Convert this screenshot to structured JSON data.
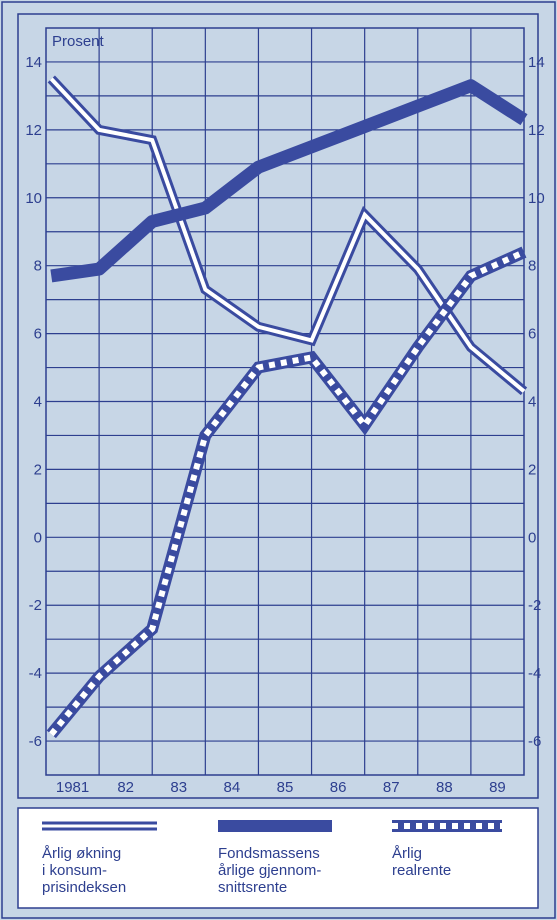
{
  "chart_data": {
    "type": "line",
    "ylabel": "Prosent",
    "ylim": [
      -7,
      15
    ],
    "yticks": [
      -6,
      -4,
      -2,
      0,
      2,
      4,
      6,
      8,
      10,
      12,
      14
    ],
    "xlabels": [
      "1981",
      "82",
      "83",
      "84",
      "85",
      "86",
      "87",
      "88",
      "89"
    ],
    "colors": {
      "background": "#c7d6e6",
      "grid": "#2d3f8f",
      "line": "#3a4ba0",
      "legend_bg": "#ffffff"
    },
    "series": [
      {
        "name": "Årlig økning i konsumprisindeksen",
        "legend_lines": [
          "Årlig økning",
          "i konsum-",
          "prisindeksen"
        ],
        "style": "double",
        "x": [
          1980.6,
          1981.5,
          1982.5,
          1983.5,
          1984.5,
          1985.5,
          1986.5,
          1987.5,
          1988.5,
          1989.5
        ],
        "values": [
          13.5,
          12.0,
          11.7,
          7.3,
          6.2,
          5.8,
          9.5,
          7.9,
          5.6,
          4.3
        ]
      },
      {
        "name": "Fondsmassens årlige gjennomsnittsrente",
        "legend_lines": [
          "Fondsmassens",
          "årlige gjennom-",
          "snittsrente"
        ],
        "style": "thick",
        "x": [
          1980.6,
          1981.5,
          1982.5,
          1983.5,
          1984.5,
          1985.5,
          1986.5,
          1987.5,
          1988.5,
          1989.5
        ],
        "values": [
          7.7,
          7.9,
          9.3,
          9.7,
          10.9,
          11.5,
          12.1,
          12.7,
          13.3,
          12.3
        ]
      },
      {
        "name": "Årlig realrente",
        "legend_lines": [
          "Årlig",
          "realrente"
        ],
        "style": "dashed",
        "x": [
          1980.6,
          1981.5,
          1982.5,
          1983.5,
          1984.5,
          1985.5,
          1986.5,
          1987.5,
          1988.5,
          1989.5
        ],
        "values": [
          -5.8,
          -4.1,
          -2.7,
          3.0,
          5.0,
          5.3,
          3.3,
          5.6,
          7.7,
          8.4
        ]
      }
    ]
  }
}
